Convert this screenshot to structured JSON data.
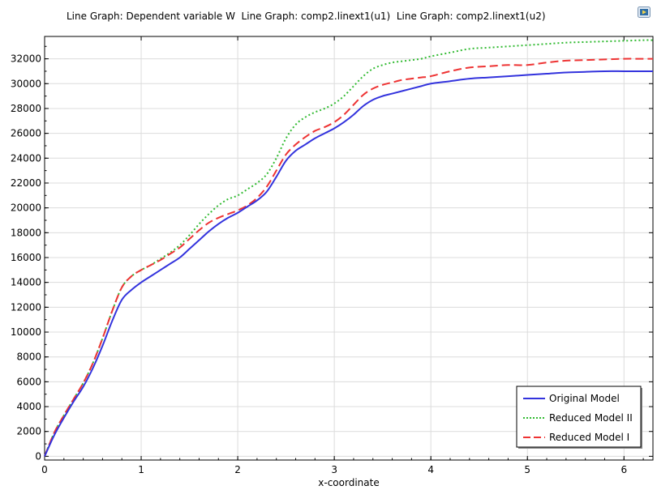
{
  "header": {
    "title": "Line Graph: Dependent variable W  Line Graph: comp2.linext1(u1)  Line Graph: comp2.linext1(u2)"
  },
  "chart_data": {
    "type": "line",
    "title": "Line Graph: Dependent variable W  Line Graph: comp2.linext1(u1)  Line Graph: comp2.linext1(u2)",
    "xlabel": "x-coordinate",
    "ylabel": "",
    "xlim": [
      0,
      6.3
    ],
    "ylim": [
      -300,
      33800
    ],
    "xticks": [
      0,
      1,
      2,
      3,
      4,
      5,
      6
    ],
    "yticks": [
      0,
      2000,
      4000,
      6000,
      8000,
      10000,
      12000,
      14000,
      16000,
      18000,
      20000,
      22000,
      24000,
      26000,
      28000,
      30000,
      32000
    ],
    "grid": true,
    "legend_position": "bottom-right",
    "x": [
      0,
      0.1,
      0.2,
      0.3,
      0.4,
      0.5,
      0.6,
      0.7,
      0.8,
      0.9,
      1.0,
      1.1,
      1.2,
      1.3,
      1.4,
      1.5,
      1.6,
      1.7,
      1.8,
      1.9,
      2.0,
      2.1,
      2.2,
      2.3,
      2.4,
      2.5,
      2.6,
      2.7,
      2.8,
      2.9,
      3.0,
      3.1,
      3.2,
      3.3,
      3.4,
      3.5,
      3.6,
      3.7,
      3.8,
      3.9,
      4.0,
      4.2,
      4.4,
      4.6,
      4.8,
      5.0,
      5.2,
      5.4,
      5.6,
      5.8,
      6.0,
      6.2,
      6.3
    ],
    "series": [
      {
        "name": "Original Model",
        "color": "#3333dd",
        "dash": "solid",
        "values": [
          0,
          1700,
          3100,
          4400,
          5600,
          7100,
          8900,
          10900,
          12600,
          13400,
          14000,
          14500,
          15000,
          15500,
          16000,
          16700,
          17400,
          18100,
          18700,
          19200,
          19600,
          20100,
          20600,
          21300,
          22500,
          23800,
          24600,
          25100,
          25600,
          26000,
          26400,
          26900,
          27500,
          28200,
          28700,
          29000,
          29200,
          29400,
          29600,
          29800,
          30000,
          30200,
          30400,
          30500,
          30600,
          30700,
          30800,
          30900,
          30950,
          31000,
          31000,
          31000,
          31000
        ]
      },
      {
        "name": "Reduced Model II",
        "color": "#33bb33",
        "dash": "dotted",
        "values": [
          0,
          1900,
          3300,
          4600,
          5900,
          7500,
          9500,
          11700,
          13600,
          14500,
          15000,
          15400,
          15900,
          16400,
          17000,
          17800,
          18700,
          19500,
          20200,
          20700,
          21000,
          21500,
          22000,
          22700,
          24000,
          25600,
          26700,
          27300,
          27700,
          28000,
          28400,
          29000,
          29800,
          30600,
          31200,
          31500,
          31700,
          31800,
          31900,
          32000,
          32200,
          32500,
          32800,
          32900,
          33000,
          33100,
          33200,
          33300,
          33350,
          33400,
          33450,
          33500,
          33500
        ]
      },
      {
        "name": "Reduced Model I",
        "color": "#ee3333",
        "dash": "dashed",
        "values": [
          0,
          1900,
          3300,
          4600,
          5900,
          7500,
          9500,
          11700,
          13600,
          14500,
          15000,
          15400,
          15800,
          16300,
          16800,
          17500,
          18200,
          18800,
          19200,
          19500,
          19800,
          20200,
          20800,
          21700,
          23000,
          24300,
          25100,
          25700,
          26200,
          26500,
          26900,
          27500,
          28300,
          29100,
          29600,
          29900,
          30100,
          30300,
          30400,
          30500,
          30600,
          31000,
          31300,
          31400,
          31500,
          31500,
          31700,
          31850,
          31900,
          31950,
          32000,
          32000,
          32000
        ]
      }
    ],
    "legend_order": [
      "Original Model",
      "Reduced Model II",
      "Reduced Model I"
    ]
  }
}
